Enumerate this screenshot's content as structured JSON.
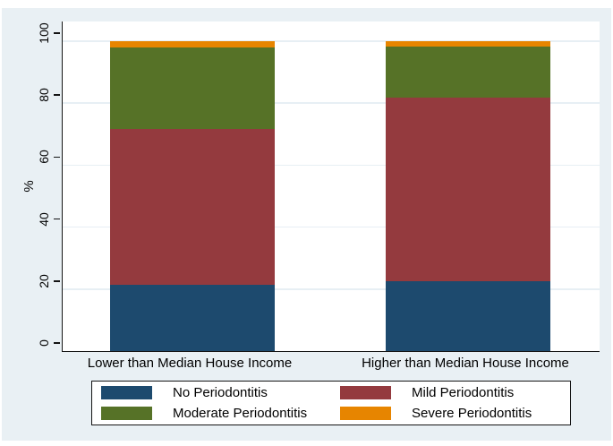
{
  "chart_data": {
    "type": "bar",
    "subtype": "stacked-percent",
    "title": "",
    "ylabel": "%",
    "xlabel": "",
    "ylim": [
      0,
      100
    ],
    "yticks": [
      0,
      20,
      40,
      60,
      80,
      100
    ],
    "grid": true,
    "legend_position": "bottom",
    "categories": [
      "Lower than Median House Income",
      "Higher than Median House Income"
    ],
    "series": [
      {
        "name": "No Periodontitis",
        "color": "#1d4a6e",
        "values": [
          21.4,
          22.5
        ]
      },
      {
        "name": "Mild Periodontitis",
        "color": "#943a3e",
        "values": [
          50.2,
          59.3
        ]
      },
      {
        "name": "Moderate Periodontitis",
        "color": "#567227",
        "values": [
          26.4,
          16.5
        ]
      },
      {
        "name": "Severe Periodontitis",
        "color": "#e78500",
        "values": [
          2.0,
          1.7
        ]
      }
    ],
    "colors": {
      "canvas_background": "#e9f0f4",
      "plot_background": "#ffffff",
      "gridline": "#e7eff4",
      "axis": "#141414"
    }
  }
}
